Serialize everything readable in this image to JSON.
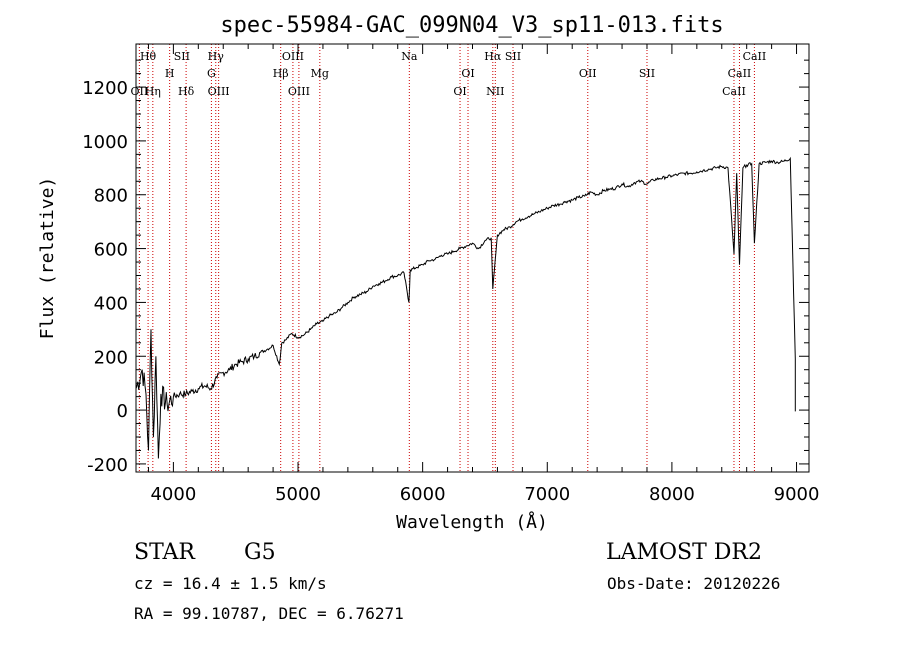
{
  "chart_data": {
    "type": "line",
    "title": "spec-55984-GAC_099N04_V3_sp11-013.fits",
    "xlabel": "Wavelength (Å)",
    "ylabel": "Flux (relative)",
    "xlim": [
      3700,
      9100
    ],
    "ylim": [
      -230,
      1360
    ],
    "x_ticks": [
      4000,
      5000,
      6000,
      7000,
      8000,
      9000
    ],
    "y_ticks": [
      -200,
      0,
      200,
      400,
      600,
      800,
      1000,
      1200
    ],
    "grid": false,
    "series": [
      {
        "x": [
          3700,
          3750,
          3780,
          3800,
          3820,
          3840,
          3860,
          3880,
          3900,
          3950,
          4000,
          4050,
          4100,
          4150,
          4200,
          4250,
          4300,
          4350,
          4400,
          4450,
          4500,
          4550,
          4600,
          4650,
          4700,
          4750,
          4800,
          4850,
          4870,
          4900,
          4950,
          5000,
          5050,
          5100,
          5150,
          5200,
          5250,
          5300,
          5350,
          5400,
          5450,
          5500,
          5550,
          5600,
          5650,
          5700,
          5750,
          5800,
          5850,
          5890,
          5900,
          5950,
          6000,
          6050,
          6100,
          6150,
          6200,
          6250,
          6300,
          6350,
          6400,
          6450,
          6500,
          6550,
          6563,
          6600,
          6650,
          6700,
          6750,
          6800,
          6850,
          6900,
          6950,
          7000,
          7050,
          7100,
          7150,
          7200,
          7250,
          7300,
          7350,
          7400,
          7450,
          7500,
          7550,
          7600,
          7650,
          7700,
          7750,
          7800,
          7850,
          7900,
          7950,
          8000,
          8050,
          8100,
          8150,
          8200,
          8250,
          8300,
          8350,
          8400,
          8450,
          8498,
          8520,
          8542,
          8570,
          8600,
          8640,
          8662,
          8700,
          8750,
          8800,
          8850,
          8900,
          8950,
          8990
        ],
        "y": [
          80,
          150,
          60,
          -150,
          300,
          -100,
          200,
          -180,
          60,
          20,
          50,
          60,
          60,
          70,
          80,
          90,
          80,
          120,
          140,
          150,
          170,
          180,
          190,
          200,
          215,
          225,
          240,
          170,
          250,
          260,
          285,
          270,
          280,
          300,
          320,
          330,
          350,
          360,
          380,
          400,
          420,
          430,
          440,
          460,
          470,
          480,
          495,
          500,
          510,
          400,
          520,
          530,
          540,
          555,
          560,
          575,
          580,
          590,
          600,
          610,
          620,
          600,
          630,
          640,
          450,
          650,
          670,
          680,
          700,
          710,
          720,
          730,
          740,
          750,
          760,
          765,
          775,
          780,
          790,
          795,
          810,
          800,
          815,
          820,
          825,
          840,
          830,
          845,
          850,
          840,
          855,
          860,
          865,
          870,
          875,
          880,
          880,
          885,
          890,
          895,
          900,
          905,
          900,
          580,
          880,
          540,
          900,
          910,
          915,
          620,
          915,
          920,
          925,
          920,
          925,
          935,
          190
        ]
      }
    ],
    "spectral_lines": [
      {
        "label": "Hθ",
        "x": 3797,
        "row": 0
      },
      {
        "label": "H",
        "x": 3970,
        "row": 1
      },
      {
        "label": "SII",
        "x": 4068,
        "row": 0
      },
      {
        "label": "Hγ",
        "x": 4340,
        "row": 0
      },
      {
        "label": "G",
        "x": 4305,
        "row": 1
      },
      {
        "label": "OIII",
        "x": 4959,
        "row": 0
      },
      {
        "label": "Hβ",
        "x": 4861,
        "row": 1
      },
      {
        "label": "Mg",
        "x": 5175,
        "row": 1
      },
      {
        "label": "Na",
        "x": 5893,
        "row": 0
      },
      {
        "label": "OI",
        "x": 6364,
        "row": 1
      },
      {
        "label": "Hα",
        "x": 6563,
        "row": 0
      },
      {
        "label": "SII",
        "x": 6725,
        "row": 0
      },
      {
        "label": "OII",
        "x": 7325,
        "row": 1
      },
      {
        "label": "SII",
        "x": 7800,
        "row": 1
      },
      {
        "label": "CaII",
        "x": 8662,
        "row": 0
      },
      {
        "label": "CaII",
        "x": 8542,
        "row": 1
      },
      {
        "label": "OII",
        "x": 3727,
        "row": 2
      },
      {
        "label": "Hη",
        "x": 3835,
        "row": 2
      },
      {
        "label": "Hδ",
        "x": 4102,
        "row": 2
      },
      {
        "label": "OIII",
        "x": 4363,
        "row": 2
      },
      {
        "label": "OIII",
        "x": 5007,
        "row": 2
      },
      {
        "label": "OI",
        "x": 6300,
        "row": 2
      },
      {
        "label": "NII",
        "x": 6583,
        "row": 2
      },
      {
        "label": "CaII",
        "x": 8498,
        "row": 2
      }
    ],
    "marker_lines_x": [
      3727,
      3797,
      3835,
      3970,
      4102,
      4305,
      4340,
      4363,
      4861,
      4959,
      5007,
      5175,
      5893,
      6300,
      6364,
      6563,
      6583,
      6725,
      7325,
      7800,
      8498,
      8542,
      8662
    ]
  },
  "info": {
    "object_class": "STAR",
    "subclass": "G5",
    "survey": "LAMOST DR2",
    "redshift": "cz = 16.4 ± 1.5 km/s",
    "obs_date": "Obs-Date: 20120226",
    "coords": "RA =  99.10787, DEC =   6.76271"
  },
  "colors": {
    "spectrum": "#000000",
    "marker_lines": "#cc0000",
    "axes": "#000000"
  }
}
